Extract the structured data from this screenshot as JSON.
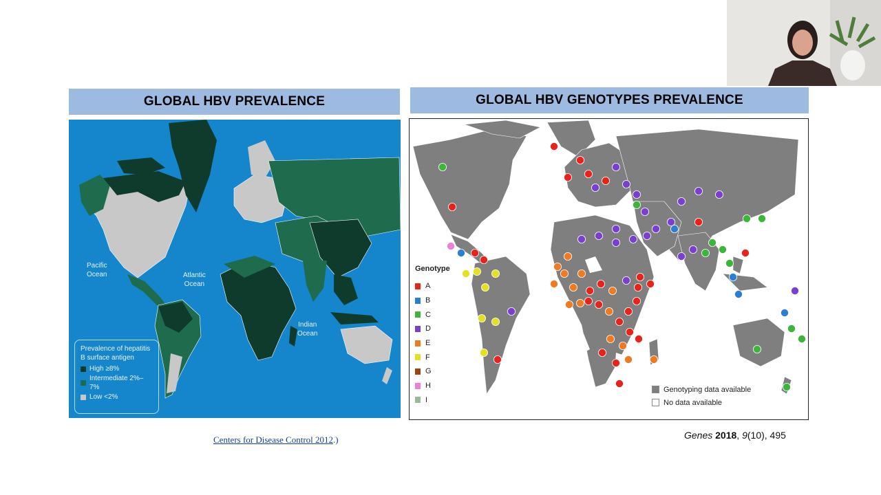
{
  "left_panel": {
    "title": "GLOBAL HBV PREVALENCE",
    "oceans": [
      "Pacific\nOcean",
      "Atlantic\nOcean",
      "Indian\nOcean"
    ],
    "legend_title": "Prevalence of hepatitis B surface antigen",
    "legend_items": [
      {
        "label": "High ≥8%",
        "color": "#0e3b2c"
      },
      {
        "label": "Intermediate 2%–7%",
        "color": "#1e6b4e"
      },
      {
        "label": "Low <2%",
        "color": "#c8c8c8"
      }
    ],
    "citation_link": "Centers for Disease Control 2012",
    "citation_suffix": ".)"
  },
  "right_panel": {
    "title": "GLOBAL HBV GENOTYPES PREVALENCE",
    "genotype_title": "Genotype",
    "genotypes": [
      {
        "label": "A",
        "color": "#e8231c"
      },
      {
        "label": "B",
        "color": "#2a7fd5"
      },
      {
        "label": "C",
        "color": "#3bb53a"
      },
      {
        "label": "D",
        "color": "#7b3fd0"
      },
      {
        "label": "E",
        "color": "#f07a22"
      },
      {
        "label": "F",
        "color": "#e6e022"
      },
      {
        "label": "G",
        "color": "#9a4318"
      },
      {
        "label": "H",
        "color": "#ef7fd6"
      },
      {
        "label": "I",
        "color": "#9ab89a"
      }
    ],
    "availability": [
      {
        "label": "Genotyping data available",
        "color": "#7f7f7f"
      },
      {
        "label": "No data available",
        "color": "#ffffff"
      }
    ],
    "citation": {
      "journal": "Genes",
      "year": "2018",
      "volume": "9",
      "issue": "(10), 495"
    }
  }
}
